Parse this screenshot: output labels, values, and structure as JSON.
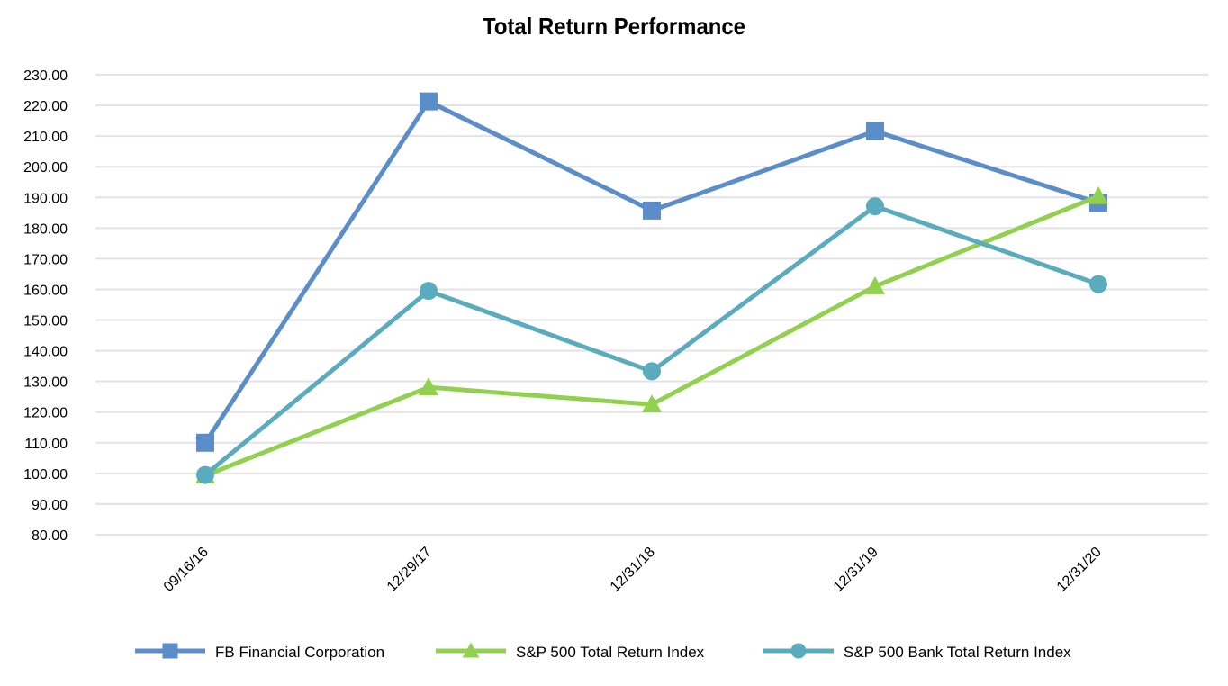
{
  "chart_data": {
    "type": "line",
    "title": "Total Return Performance",
    "xlabel": "",
    "ylabel": "",
    "categories": [
      "09/16/16",
      "12/29/17",
      "12/31/18",
      "12/31/19",
      "12/31/20"
    ],
    "ylim": [
      80,
      230
    ],
    "yticks": [
      "80.00",
      "90.00",
      "100.00",
      "110.00",
      "120.00",
      "130.00",
      "140.00",
      "150.00",
      "160.00",
      "170.00",
      "180.00",
      "190.00",
      "200.00",
      "210.00",
      "220.00",
      "230.00"
    ],
    "grid": true,
    "legend_position": "bottom",
    "series": [
      {
        "name": "FB Financial Corporation",
        "values": [
          110.0,
          221.3,
          185.7,
          211.6,
          188.2
        ],
        "color": "#5b8ec9",
        "marker": "square"
      },
      {
        "name": "S&P 500 Total Return Index",
        "values": [
          99.3,
          128.1,
          122.5,
          161.0,
          190.4
        ],
        "color": "#92d050",
        "marker": "triangle"
      },
      {
        "name": "S&P 500 Bank Total Return Index",
        "values": [
          99.5,
          159.5,
          133.3,
          187.1,
          161.7
        ],
        "color": "#5aabbd",
        "marker": "circle"
      }
    ]
  }
}
